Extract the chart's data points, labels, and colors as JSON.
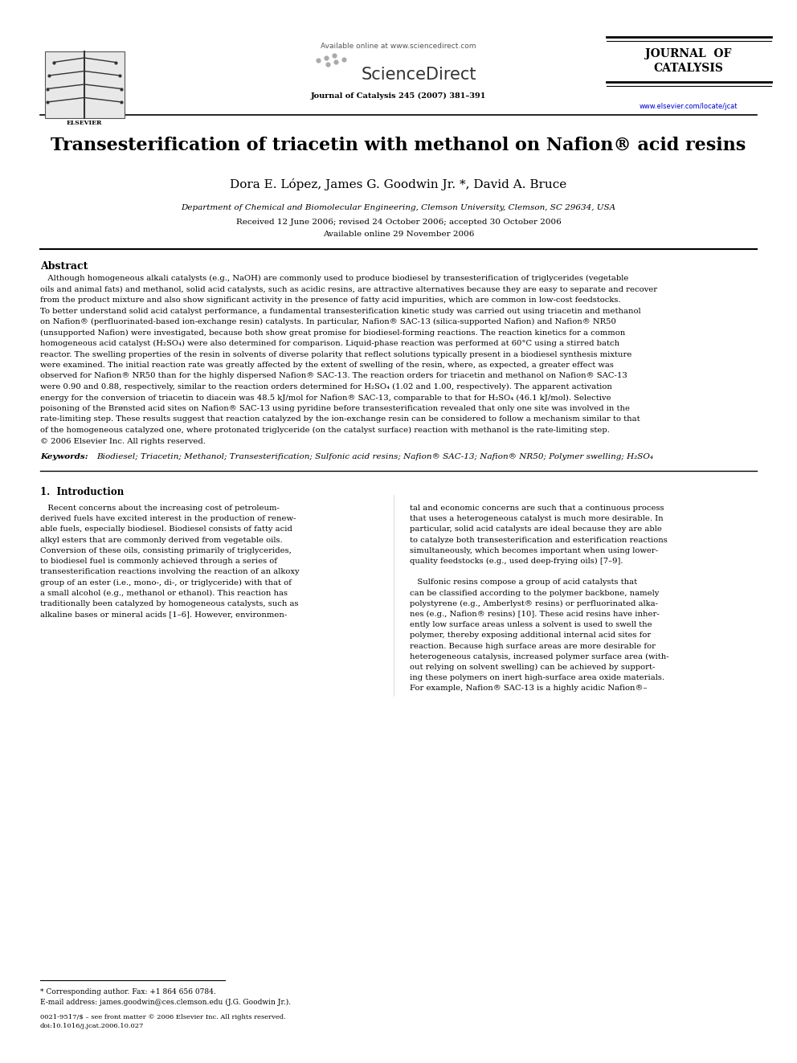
{
  "bg_color": "#ffffff",
  "page_width": 9.92,
  "page_height": 13.23,
  "header": {
    "available_online_text": "Available online at www.sciencedirect.com",
    "sciencedirect_text": "ScienceDirect",
    "journal_line1": "JOURNAL  OF",
    "journal_line2": "CATALYSIS",
    "journal_issue": "Journal of Catalysis 245 (2007) 381–391",
    "elsevier_text": "ELSEVIER",
    "url": "www.elsevier.com/locate/jcat"
  },
  "title": "Transesterification of triacetin with methanol on Nafion® acid resins",
  "authors": "Dora E. López, James G. Goodwin Jr. *, David A. Bruce",
  "affiliation": "Department of Chemical and Biomolecular Engineering, Clemson University, Clemson, SC 29634, USA",
  "received": "Received 12 June 2006; revised 24 October 2006; accepted 30 October 2006",
  "available_online": "Available online 29 November 2006",
  "abstract_title": "Abstract",
  "keywords_label": "Keywords:",
  "keywords_text": "Biodiesel; Triacetin; Methanol; Transesterification; Sulfonic acid resins; Nafion® SAC-13; Nafion® NR50; Polymer swelling; H₂SO₄",
  "section1_title": "1.  Introduction",
  "footnote_star": "* Corresponding author. Fax: +1 864 656 0784.",
  "footnote_email": "E-mail address: james.goodwin@ces.clemson.edu (J.G. Goodwin Jr.).",
  "footnote_issn": "0021-9517/$ – see front matter © 2006 Elsevier Inc. All rights reserved.",
  "footnote_doi": "doi:10.1016/j.jcat.2006.10.027"
}
